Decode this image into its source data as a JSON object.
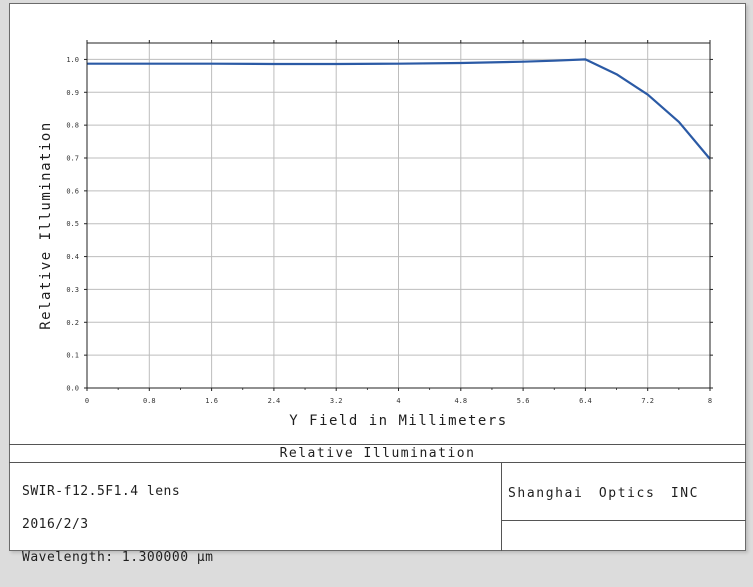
{
  "chart_data": {
    "type": "line",
    "title": "",
    "xlabel": "Y Field in Millimeters",
    "ylabel": "Relative Illumination",
    "xlim": [
      0,
      8
    ],
    "ylim": [
      0,
      1.05
    ],
    "x_ticks": [
      "0",
      "0.8",
      "1.6",
      "2.4",
      "3.2",
      "4",
      "4.8",
      "5.6",
      "6.4",
      "7.2",
      "8"
    ],
    "y_ticks": [
      "0.0",
      "0.1",
      "0.2",
      "0.3",
      "0.4",
      "0.5",
      "0.6",
      "0.7",
      "0.8",
      "0.9",
      "1.0"
    ],
    "grid": true,
    "series": [
      {
        "color": "#2b5aa5",
        "x": [
          0,
          0.8,
          1.6,
          2.4,
          3.2,
          4.0,
          4.8,
          5.6,
          6.0,
          6.4,
          6.8,
          7.2,
          7.6,
          8.0
        ],
        "y": [
          0.987,
          0.987,
          0.987,
          0.986,
          0.986,
          0.987,
          0.989,
          0.993,
          0.996,
          1.0,
          0.955,
          0.893,
          0.81,
          0.697
        ]
      }
    ]
  },
  "footer": {
    "title": "Relative Illumination",
    "lines": [
      "SWIR-f12.5F1.4 lens",
      "2016/2/3",
      "Wavelength: 1.300000 µm"
    ],
    "company": "Shanghai Optics INC"
  }
}
